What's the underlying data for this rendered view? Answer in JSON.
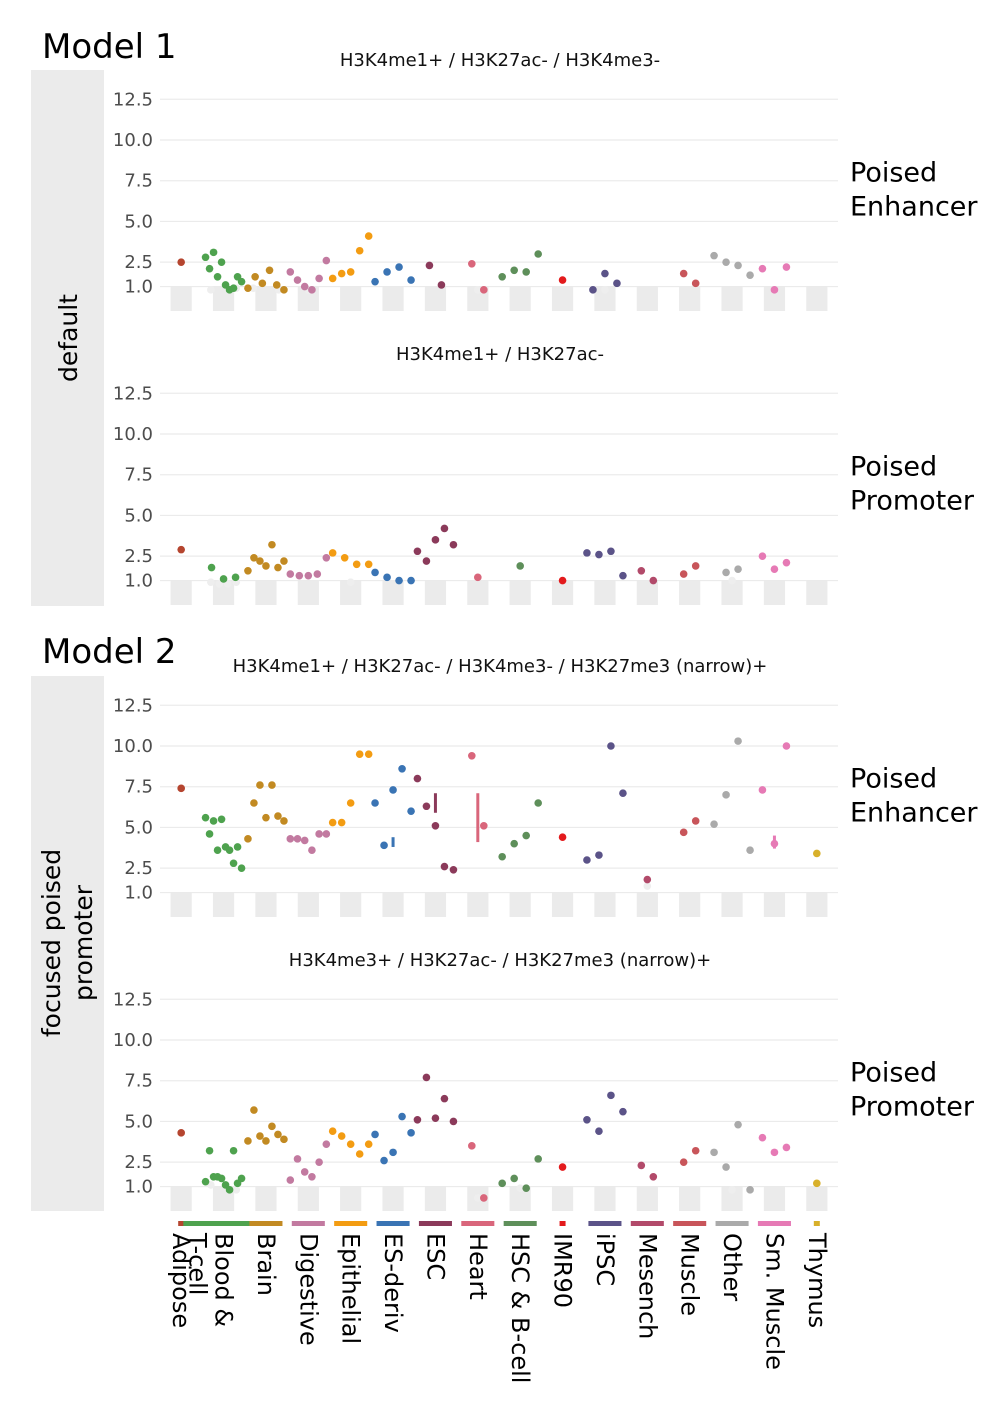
{
  "figure": {
    "model1_label": "Model 1",
    "model2_label": "Model 2",
    "strip_default": "default",
    "strip_focused_line1": "focused poised",
    "strip_focused_line2": "promoter"
  },
  "colors": {
    "Adipose": "#b5452f",
    "Blood & T-cell": "#4ea24e",
    "Brain": "#c28a22",
    "Digestive": "#c27aa0",
    "Epithelial": "#f39c12",
    "ES-deriv": "#3a74b4",
    "ESC": "#8b3a5a",
    "Heart": "#d9667b",
    "HSC & B-cell": "#5e8f5a",
    "IMR90": "#e31a1c",
    "iPSC": "#5b5388",
    "Mesench": "#b24a6a",
    "Muscle": "#c8555a",
    "Other": "#aaaaaa",
    "Sm. Muscle": "#e67ab5",
    "Thymus": "#d8b02a",
    "faded": "#eeeeee",
    "band": "#ebebeb",
    "grid": "#ebebeb"
  },
  "chart_data": [
    {
      "type": "scatter",
      "id": "m1-enhancer",
      "title": "H3K4me1+ / H3K27ac- / H3K4me3-",
      "row_label_line1": "Poised",
      "row_label_line2": "Enhancer",
      "ylim": [
        -0.5,
        13.5
      ],
      "yticks": [
        "12.5",
        "10.0",
        "7.5",
        "5.0",
        "2.5",
        "1.0"
      ],
      "categories": [
        "Adipose",
        "Blood & T-cell",
        "Brain",
        "Digestive",
        "Epithelial",
        "ES-deriv",
        "ESC",
        "Heart",
        "HSC & B-cell",
        "IMR90",
        "iPSC",
        "Mesench",
        "Muscle",
        "Other",
        "Sm. Muscle",
        "Thymus"
      ],
      "points": [
        {
          "cat": "Adipose",
          "values": [
            2.5
          ]
        },
        {
          "cat": "Blood & T-cell",
          "values": [
            2.8,
            2.1,
            3.1,
            1.6,
            2.5,
            1.1,
            0.8,
            0.9,
            1.6,
            1.3
          ]
        },
        {
          "cat": "Brain",
          "values": [
            0.9,
            1.6,
            1.2,
            2.0,
            1.1,
            0.8
          ]
        },
        {
          "cat": "Digestive",
          "values": [
            1.9,
            1.4,
            1.0,
            0.8,
            1.5,
            2.6
          ]
        },
        {
          "cat": "Epithelial",
          "values": [
            1.5,
            1.8,
            1.9,
            3.2,
            4.1
          ]
        },
        {
          "cat": "ES-deriv",
          "values": [
            1.3,
            1.9,
            2.2,
            1.4
          ]
        },
        {
          "cat": "ESC",
          "values": [
            2.3,
            1.1
          ]
        },
        {
          "cat": "Heart",
          "values": [
            2.4,
            0.8
          ]
        },
        {
          "cat": "HSC & B-cell",
          "values": [
            1.6,
            2.0,
            1.9,
            3.0
          ]
        },
        {
          "cat": "IMR90",
          "values": [
            1.4
          ]
        },
        {
          "cat": "iPSC",
          "values": [
            0.8,
            1.8,
            1.2
          ]
        },
        {
          "cat": "Mesench",
          "values": []
        },
        {
          "cat": "Muscle",
          "values": [
            1.8,
            1.2
          ]
        },
        {
          "cat": "Other",
          "values": [
            2.9,
            2.5,
            2.3,
            1.7
          ]
        },
        {
          "cat": "Sm. Muscle",
          "values": [
            2.1,
            0.8,
            2.2
          ]
        },
        {
          "cat": "Thymus",
          "values": []
        }
      ],
      "faded_points": [
        {
          "cat": "Blood & T-cell",
          "values": [
            0.8,
            0.9
          ]
        },
        {
          "cat": "Brain",
          "values": [
            0.9,
            0.8
          ]
        },
        {
          "cat": "Digestive",
          "values": [
            0.8
          ]
        },
        {
          "cat": "Heart",
          "values": [
            0.8
          ]
        },
        {
          "cat": "iPSC",
          "values": [
            0.8
          ]
        },
        {
          "cat": "Sm. Muscle",
          "values": [
            0.8
          ]
        }
      ]
    },
    {
      "type": "scatter",
      "id": "m1-promoter",
      "title": "H3K4me1+ / H3K27ac-",
      "row_label_line1": "Poised",
      "row_label_line2": "Promoter",
      "ylim": [
        -0.5,
        13.5
      ],
      "yticks": [
        "12.5",
        "10.0",
        "7.5",
        "5.0",
        "2.5",
        "1.0"
      ],
      "points": [
        {
          "cat": "Adipose",
          "values": [
            2.9
          ]
        },
        {
          "cat": "Blood & T-cell",
          "values": [
            1.8,
            1.1,
            1.2
          ]
        },
        {
          "cat": "Brain",
          "values": [
            1.6,
            2.4,
            2.2,
            1.9,
            3.2,
            1.8,
            2.2
          ]
        },
        {
          "cat": "Digestive",
          "values": [
            1.4,
            1.3,
            1.3,
            1.4,
            2.4
          ]
        },
        {
          "cat": "Epithelial",
          "values": [
            2.7,
            2.4,
            2.0,
            2.0
          ]
        },
        {
          "cat": "ES-deriv",
          "values": [
            1.5,
            1.2,
            1.0,
            1.0
          ]
        },
        {
          "cat": "ESC",
          "values": [
            2.8,
            2.2,
            3.5,
            4.2,
            3.2
          ]
        },
        {
          "cat": "Heart",
          "values": [
            1.2
          ]
        },
        {
          "cat": "HSC & B-cell",
          "values": [
            1.9
          ]
        },
        {
          "cat": "IMR90",
          "values": [
            1.0
          ]
        },
        {
          "cat": "iPSC",
          "values": [
            2.7,
            2.6,
            2.8,
            1.3
          ]
        },
        {
          "cat": "Mesench",
          "values": [
            1.6,
            1.0
          ]
        },
        {
          "cat": "Muscle",
          "values": [
            1.4,
            1.9
          ]
        },
        {
          "cat": "Other",
          "values": [
            1.5,
            1.7
          ]
        },
        {
          "cat": "Sm. Muscle",
          "values": [
            2.5,
            1.7,
            2.1
          ]
        },
        {
          "cat": "Thymus",
          "values": []
        }
      ],
      "faded_points": [
        {
          "cat": "Blood & T-cell",
          "values": [
            0.9,
            0.8,
            0.8,
            0.9
          ]
        },
        {
          "cat": "Epithelial",
          "values": [
            0.9
          ]
        },
        {
          "cat": "Other",
          "values": [
            1.0
          ]
        }
      ]
    },
    {
      "type": "scatter",
      "id": "m2-enhancer",
      "title": "H3K4me1+ / H3K27ac- / H3K4me3- / H3K27me3 (narrow)+",
      "row_label_line1": "Poised",
      "row_label_line2": "Enhancer",
      "ylim": [
        -0.5,
        13.5
      ],
      "yticks": [
        "12.5",
        "10.0",
        "7.5",
        "5.0",
        "2.5",
        "1.0"
      ],
      "points": [
        {
          "cat": "Adipose",
          "values": [
            7.4
          ]
        },
        {
          "cat": "Blood & T-cell",
          "values": [
            5.6,
            4.6,
            5.4,
            3.6,
            5.5,
            3.8,
            3.6,
            2.8,
            3.8,
            2.5
          ]
        },
        {
          "cat": "Brain",
          "values": [
            4.3,
            6.5,
            7.6,
            5.6,
            7.6,
            5.7,
            5.4
          ]
        },
        {
          "cat": "Digestive",
          "values": [
            4.3,
            4.3,
            4.2,
            3.6,
            4.6,
            4.6
          ]
        },
        {
          "cat": "Epithelial",
          "values": [
            5.3,
            5.3,
            6.5,
            9.5,
            9.5
          ]
        },
        {
          "cat": "ES-deriv",
          "values": [
            6.5,
            3.9,
            7.3,
            8.6,
            6.0
          ]
        },
        {
          "cat": "ESC",
          "values": [
            8.0,
            6.3,
            5.1,
            2.6,
            2.4
          ]
        },
        {
          "cat": "Heart",
          "values": [
            9.4,
            5.1
          ]
        },
        {
          "cat": "HSC & B-cell",
          "values": [
            3.2,
            4.0,
            4.5,
            6.5
          ]
        },
        {
          "cat": "IMR90",
          "values": [
            4.4
          ]
        },
        {
          "cat": "iPSC",
          "values": [
            3.0,
            3.3,
            10.0,
            7.1
          ]
        },
        {
          "cat": "Mesench",
          "values": [
            1.8
          ]
        },
        {
          "cat": "Muscle",
          "values": [
            4.7,
            5.4
          ]
        },
        {
          "cat": "Other",
          "values": [
            5.2,
            7.0,
            10.3,
            3.6
          ]
        },
        {
          "cat": "Sm. Muscle",
          "values": [
            7.3,
            4.0,
            10.0
          ]
        },
        {
          "cat": "Thymus",
          "values": [
            3.4
          ]
        }
      ],
      "faded_points": [
        {
          "cat": "Mesench",
          "values": [
            1.4
          ]
        }
      ],
      "error_bars": [
        {
          "cat": "ES-deriv",
          "offset": -1,
          "low": 3.8,
          "high": 4.4
        },
        {
          "cat": "ESC",
          "offset": 1,
          "low": 5.9,
          "high": 7.1
        },
        {
          "cat": "Heart",
          "offset": 1,
          "low": 4.1,
          "high": 7.1
        },
        {
          "cat": "Sm. Muscle",
          "offset": 1,
          "low": 3.7,
          "high": 4.5
        }
      ]
    },
    {
      "type": "scatter",
      "id": "m2-promoter",
      "title": "H3K4me3+ / H3K27ac-  / H3K27me3 (narrow)+",
      "row_label_line1": "Poised",
      "row_label_line2": "Promoter",
      "ylim": [
        -0.5,
        13.5
      ],
      "yticks": [
        "12.5",
        "10.0",
        "7.5",
        "5.0",
        "2.5",
        "1.0"
      ],
      "points": [
        {
          "cat": "Adipose",
          "values": [
            4.3
          ]
        },
        {
          "cat": "Blood & T-cell",
          "values": [
            1.3,
            3.2,
            1.6,
            1.6,
            1.5,
            1.1,
            0.8,
            3.2,
            1.2,
            1.5
          ]
        },
        {
          "cat": "Brain",
          "values": [
            3.8,
            5.7,
            4.1,
            3.8,
            4.7,
            4.2,
            3.9
          ]
        },
        {
          "cat": "Digestive",
          "values": [
            1.4,
            2.7,
            1.9,
            1.6,
            2.5,
            3.6
          ]
        },
        {
          "cat": "Epithelial",
          "values": [
            4.4,
            4.1,
            3.6,
            3.0,
            3.6
          ]
        },
        {
          "cat": "ES-deriv",
          "values": [
            4.2,
            2.6,
            3.1,
            5.3,
            4.3
          ]
        },
        {
          "cat": "ESC",
          "values": [
            5.1,
            7.7,
            5.2,
            6.4,
            5.0
          ]
        },
        {
          "cat": "Heart",
          "values": [
            3.5,
            0.3
          ]
        },
        {
          "cat": "HSC & B-cell",
          "values": [
            1.2,
            1.5,
            0.9,
            2.7
          ]
        },
        {
          "cat": "IMR90",
          "values": [
            2.2
          ]
        },
        {
          "cat": "iPSC",
          "values": [
            5.1,
            4.4,
            6.6,
            5.6
          ]
        },
        {
          "cat": "Mesench",
          "values": [
            2.3,
            1.6
          ]
        },
        {
          "cat": "Muscle",
          "values": [
            2.5,
            3.2
          ]
        },
        {
          "cat": "Other",
          "values": [
            3.1,
            2.2,
            4.8,
            0.8
          ]
        },
        {
          "cat": "Sm. Muscle",
          "values": [
            4.0,
            3.1,
            3.4
          ]
        },
        {
          "cat": "Thymus",
          "values": [
            1.2
          ]
        }
      ],
      "faded_points": [
        {
          "cat": "Blood & T-cell",
          "values": [
            1.1,
            0.8
          ]
        },
        {
          "cat": "Heart",
          "values": [
            0.3
          ]
        },
        {
          "cat": "HSC & B-cell",
          "values": [
            0.9
          ]
        },
        {
          "cat": "Other",
          "values": [
            0.8
          ]
        }
      ]
    }
  ],
  "x_categories": [
    {
      "key": "Adipose",
      "label": "Adipose"
    },
    {
      "key": "Blood & T-cell",
      "label": "Blood &",
      "label2": "T-cell"
    },
    {
      "key": "Brain",
      "label": "Brain"
    },
    {
      "key": "Digestive",
      "label": "Digestive"
    },
    {
      "key": "Epithelial",
      "label": "Epithelial"
    },
    {
      "key": "ES-deriv",
      "label": "ES-deriv"
    },
    {
      "key": "ESC",
      "label": "ESC"
    },
    {
      "key": "Heart",
      "label": "Heart"
    },
    {
      "key": "HSC & B-cell",
      "label": "HSC & B-cell"
    },
    {
      "key": "IMR90",
      "label": "IMR90"
    },
    {
      "key": "iPSC",
      "label": "iPSC"
    },
    {
      "key": "Mesench",
      "label": "Mesench"
    },
    {
      "key": "Muscle",
      "label": "Muscle"
    },
    {
      "key": "Other",
      "label": "Other"
    },
    {
      "key": "Sm. Muscle",
      "label": "Sm. Muscle"
    },
    {
      "key": "Thymus",
      "label": "Thymus"
    }
  ]
}
